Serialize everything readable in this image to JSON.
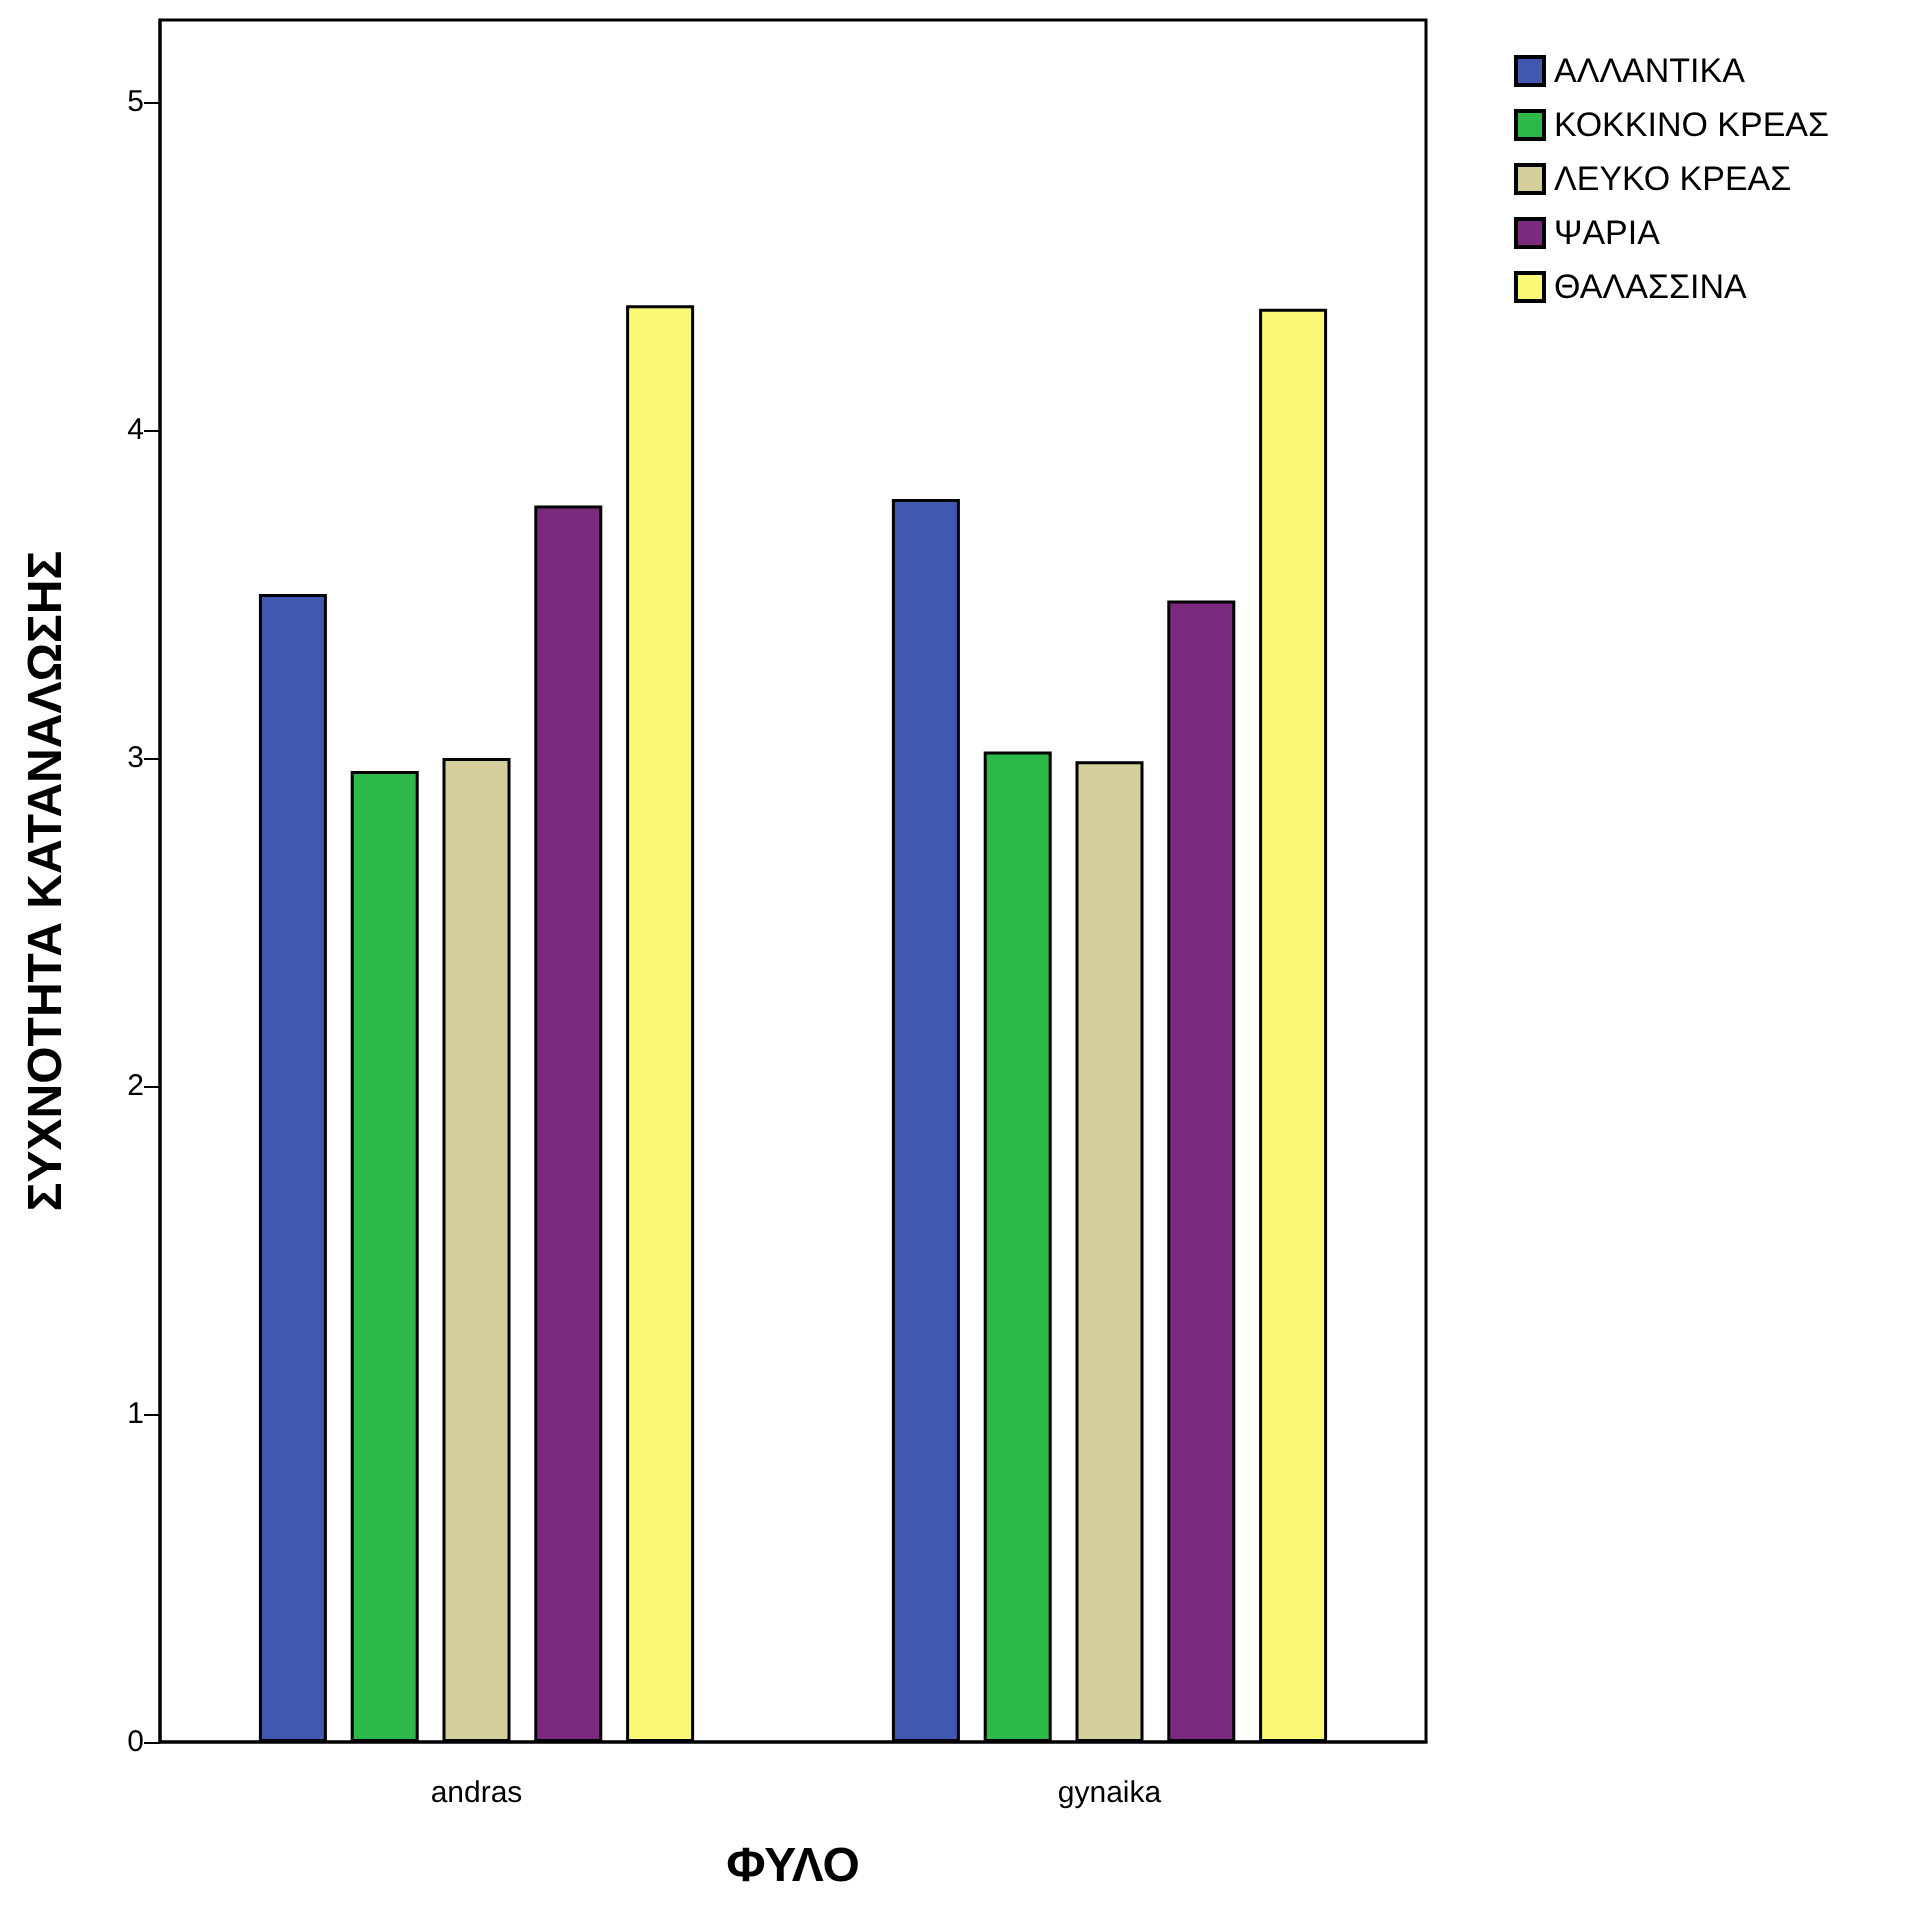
{
  "chart_data": {
    "type": "bar",
    "xlabel": "ΦΥΛΟ",
    "ylabel": "ΣΥΧΝΟΤΗΤΑ ΚΑΤΑΝΑΛΩΣΗΣ",
    "categories": [
      "andras",
      "gynaika"
    ],
    "series": [
      {
        "name": "ΑΛΛΑΝΤΙΚΑ",
        "color": "#3f58b0",
        "values": [
          3.5,
          3.79
        ]
      },
      {
        "name": "ΚΟΚΚΙΝΟ ΚΡΕΑΣ",
        "color": "#2db84a",
        "values": [
          2.96,
          3.02
        ]
      },
      {
        "name": "ΛΕΥΚΟ ΚΡΕΑΣ",
        "color": "#d5cf9b",
        "values": [
          3.0,
          2.99
        ]
      },
      {
        "name": "ΨΑΡΙΑ",
        "color": "#7b2a7e",
        "values": [
          3.77,
          3.48
        ]
      },
      {
        "name": "ΘΑΛΑΣΣΙΝΑ",
        "color": "#fbf875",
        "values": [
          4.38,
          4.37
        ]
      }
    ],
    "ylim": [
      0,
      5.25
    ],
    "yticks": [
      0,
      1,
      2,
      3,
      4,
      5
    ],
    "grid": false,
    "legend": "right"
  }
}
